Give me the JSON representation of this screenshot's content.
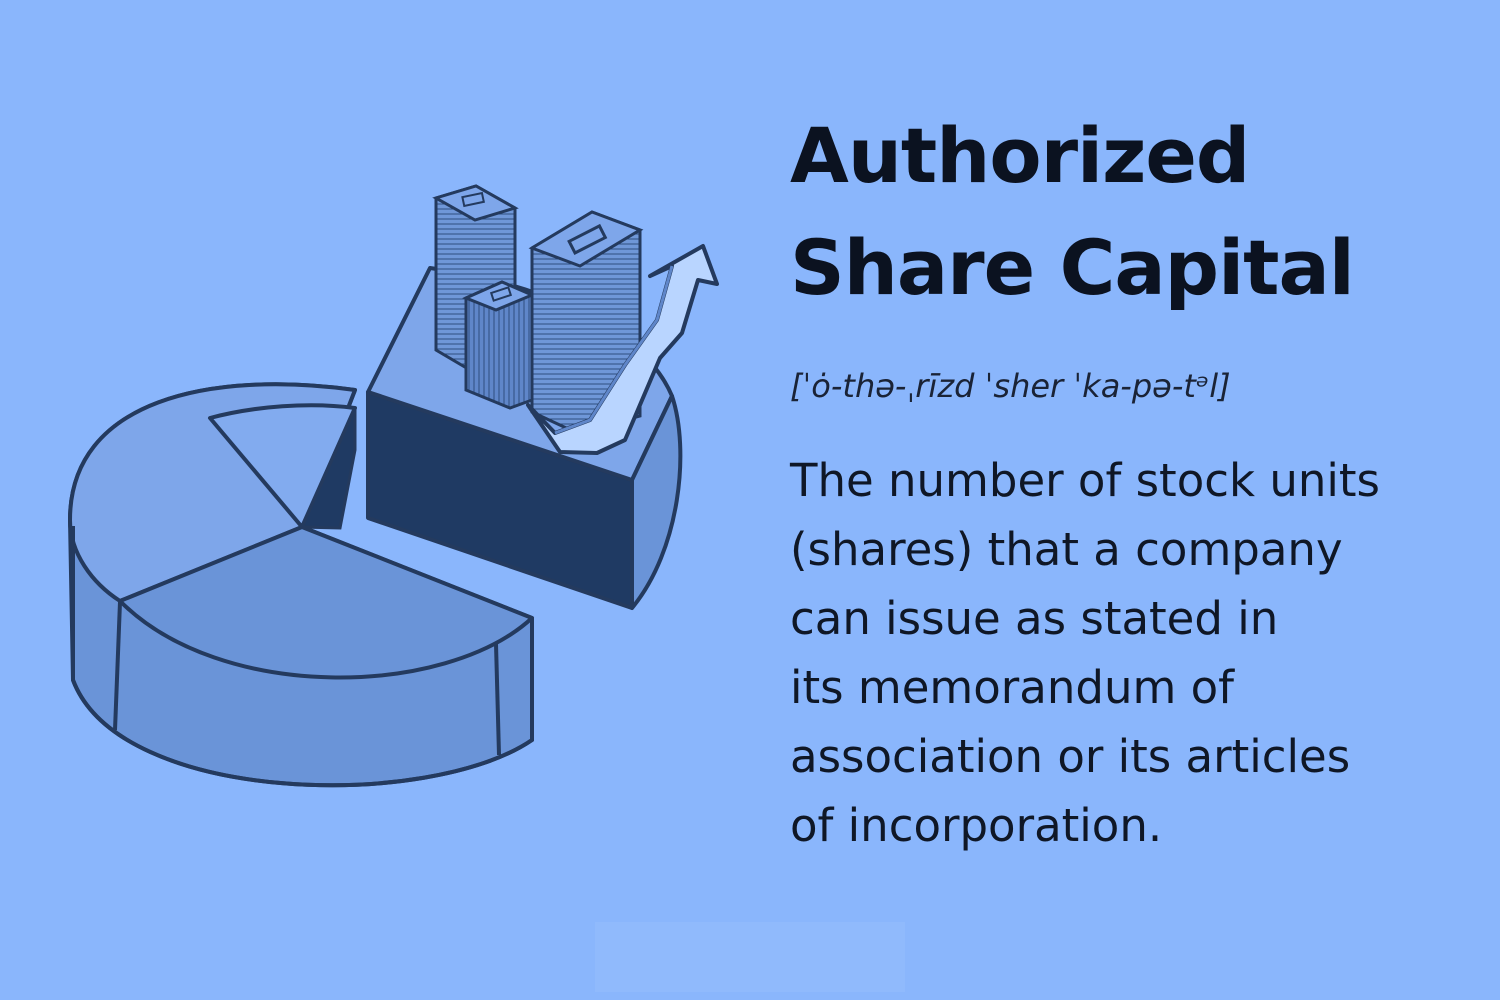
{
  "title": {
    "line1": "Authorized",
    "line2": "Share Capital"
  },
  "pronunciation": "[ˈȯ-thə-ˌrīzd ˈsher ˈka-pə-tᵊl]",
  "definition": {
    "lines": [
      "The number of stock units",
      "(shares) that a company",
      "can issue as stated in",
      "its memorandum of",
      "association or its articles",
      "of incorporation."
    ]
  },
  "illustration": {
    "subject": "3D pie chart with stacks of money bills and an upward trend arrow",
    "icon_names": [
      "pie-chart-icon",
      "money-stack-icon",
      "trend-arrow-icon"
    ]
  },
  "colors": {
    "background": "#8ab6fc",
    "text": "#0f1726",
    "outline": "#243a5e",
    "pie_dark": "#1f3a63",
    "pie_mid": "#6a94d8",
    "pie_light": "#7ea6ea"
  }
}
